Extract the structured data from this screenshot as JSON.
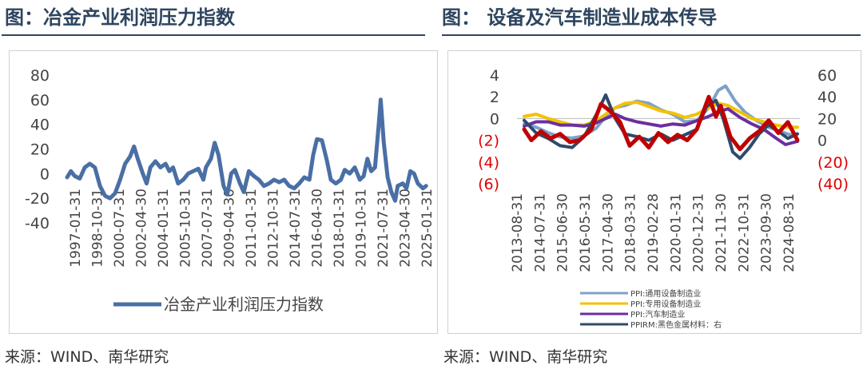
{
  "left": {
    "title": "图：冶金产业利润压力指数",
    "source": "来源：WIND、南华研究"
  },
  "right": {
    "title": "图：  设备及汽车制造业成本传导",
    "source": "来源：WIND、南华研究"
  },
  "chart_data": [
    {
      "type": "line",
      "ylim": [
        -40,
        80
      ],
      "yticks": [
        "80",
        "60",
        "40",
        "20",
        "0",
        "-20",
        "-40"
      ],
      "xtick_labels": [
        "1997-01-31",
        "1998-10-31",
        "2000-07-31",
        "2002-04-30",
        "2004-01-31",
        "2005-10-31",
        "2007-07-31",
        "2009-04-30",
        "2011-01-31",
        "2012-10-31",
        "2014-07-31",
        "2016-04-30",
        "2018-01-31",
        "2019-10-31",
        "2021-07-31",
        "2023-04-30",
        "2025-01-31"
      ],
      "x_range": [
        1997.0,
        2025.5
      ],
      "series": [
        {
          "name": "冶金产业利润压力指数",
          "color": "#4a6fa5",
          "points": [
            [
              1997.0,
              -3
            ],
            [
              1997.3,
              2
            ],
            [
              1997.6,
              -2
            ],
            [
              1998.0,
              -4
            ],
            [
              1998.4,
              5
            ],
            [
              1998.8,
              8
            ],
            [
              1999.2,
              5
            ],
            [
              1999.6,
              -10
            ],
            [
              2000.0,
              -18
            ],
            [
              2000.4,
              -20
            ],
            [
              2000.8,
              -16
            ],
            [
              2001.2,
              -5
            ],
            [
              2001.6,
              8
            ],
            [
              2002.0,
              14
            ],
            [
              2002.3,
              22
            ],
            [
              2002.6,
              12
            ],
            [
              2003.0,
              0
            ],
            [
              2003.3,
              -8
            ],
            [
              2003.6,
              5
            ],
            [
              2004.0,
              10
            ],
            [
              2004.4,
              5
            ],
            [
              2004.8,
              8
            ],
            [
              2005.1,
              2
            ],
            [
              2005.4,
              5
            ],
            [
              2005.8,
              -8
            ],
            [
              2006.2,
              -5
            ],
            [
              2006.6,
              0
            ],
            [
              2007.0,
              2
            ],
            [
              2007.4,
              4
            ],
            [
              2007.8,
              -5
            ],
            [
              2008.0,
              5
            ],
            [
              2008.4,
              12
            ],
            [
              2008.7,
              25
            ],
            [
              2009.0,
              15
            ],
            [
              2009.4,
              -10
            ],
            [
              2009.7,
              -17
            ],
            [
              2010.0,
              0
            ],
            [
              2010.3,
              3
            ],
            [
              2010.7,
              -8
            ],
            [
              2011.0,
              -15
            ],
            [
              2011.4,
              2
            ],
            [
              2011.8,
              -2
            ],
            [
              2012.2,
              -5
            ],
            [
              2012.6,
              -10
            ],
            [
              2013.0,
              -8
            ],
            [
              2013.4,
              -5
            ],
            [
              2013.8,
              -7
            ],
            [
              2014.2,
              -5
            ],
            [
              2014.6,
              -10
            ],
            [
              2015.0,
              -12
            ],
            [
              2015.4,
              -8
            ],
            [
              2015.8,
              -3
            ],
            [
              2016.2,
              -5
            ],
            [
              2016.5,
              15
            ],
            [
              2016.8,
              28
            ],
            [
              2017.2,
              27
            ],
            [
              2017.6,
              10
            ],
            [
              2017.9,
              -5
            ],
            [
              2018.3,
              -8
            ],
            [
              2018.7,
              -5
            ],
            [
              2019.0,
              3
            ],
            [
              2019.4,
              0
            ],
            [
              2019.8,
              5
            ],
            [
              2020.2,
              -5
            ],
            [
              2020.5,
              -2
            ],
            [
              2020.8,
              12
            ],
            [
              2021.1,
              2
            ],
            [
              2021.4,
              5
            ],
            [
              2021.7,
              40
            ],
            [
              2021.85,
              60
            ],
            [
              2022.1,
              25
            ],
            [
              2022.4,
              -3
            ],
            [
              2022.7,
              -15
            ],
            [
              2023.0,
              -22
            ],
            [
              2023.2,
              -10
            ],
            [
              2023.6,
              -8
            ],
            [
              2023.9,
              -12
            ],
            [
              2024.2,
              2
            ],
            [
              2024.5,
              0
            ],
            [
              2024.8,
              -8
            ],
            [
              2025.2,
              -12
            ],
            [
              2025.45,
              -10
            ]
          ]
        }
      ]
    },
    {
      "type": "line",
      "ylim_left": [
        -6,
        4
      ],
      "ylim_right": [
        -60,
        60
      ],
      "yticks_left": [
        "4",
        "2",
        "0",
        "(2)",
        "(4)",
        "(6)"
      ],
      "yticks_right": [
        "60",
        "40",
        "20",
        "0",
        "(20)",
        "(40)"
      ],
      "xtick_labels": [
        "2013-08-31",
        "2014-07-31",
        "2015-06-30",
        "2016-05-31",
        "2017-04-30",
        "2018-03-31",
        "2019-02-28",
        "2020-01-31",
        "2020-12-31",
        "2021-11-30",
        "2022-10-31",
        "2023-09-30",
        "2024-08-31"
      ],
      "x_range": [
        2013.5,
        2025.3
      ],
      "series": [
        {
          "name": "PPI:通用设备制造业",
          "axis": "left",
          "color": "#7ea1c8",
          "points": [
            [
              2013.8,
              -0.5
            ],
            [
              2014.3,
              -0.8
            ],
            [
              2014.8,
              -1.3
            ],
            [
              2015.3,
              -1.7
            ],
            [
              2015.8,
              -1.8
            ],
            [
              2016.3,
              -1.6
            ],
            [
              2016.8,
              -0.9
            ],
            [
              2017.2,
              0.2
            ],
            [
              2017.6,
              1.0
            ],
            [
              2018.0,
              1.2
            ],
            [
              2018.5,
              1.6
            ],
            [
              2019.0,
              1.4
            ],
            [
              2019.5,
              0.8
            ],
            [
              2020.0,
              0.4
            ],
            [
              2020.5,
              -0.3
            ],
            [
              2021.0,
              -0.2
            ],
            [
              2021.5,
              1.0
            ],
            [
              2021.9,
              2.6
            ],
            [
              2022.2,
              3.0
            ],
            [
              2022.6,
              1.6
            ],
            [
              2023.0,
              0.6
            ],
            [
              2023.5,
              -0.2
            ],
            [
              2024.0,
              -0.8
            ],
            [
              2024.5,
              -1.2
            ],
            [
              2024.9,
              -1.5
            ],
            [
              2025.2,
              -1.4
            ]
          ]
        },
        {
          "name": "PPI:专用设备制造业",
          "axis": "left",
          "color": "#f2c200",
          "points": [
            [
              2013.8,
              0.2
            ],
            [
              2014.3,
              0.4
            ],
            [
              2014.8,
              0.0
            ],
            [
              2015.3,
              -0.3
            ],
            [
              2015.8,
              -0.6
            ],
            [
              2016.3,
              -0.6
            ],
            [
              2016.8,
              -0.2
            ],
            [
              2017.2,
              0.4
            ],
            [
              2017.6,
              1.0
            ],
            [
              2018.0,
              1.4
            ],
            [
              2018.5,
              1.5
            ],
            [
              2019.0,
              1.1
            ],
            [
              2019.5,
              0.7
            ],
            [
              2020.0,
              0.5
            ],
            [
              2020.5,
              0.1
            ],
            [
              2021.0,
              0.4
            ],
            [
              2021.5,
              1.0
            ],
            [
              2021.9,
              1.4
            ],
            [
              2022.3,
              1.2
            ],
            [
              2022.8,
              0.6
            ],
            [
              2023.3,
              0.0
            ],
            [
              2023.8,
              -0.3
            ],
            [
              2024.3,
              -0.6
            ],
            [
              2024.8,
              -0.8
            ],
            [
              2025.2,
              -0.8
            ]
          ]
        },
        {
          "name": "PPI:汽车制造业",
          "axis": "left",
          "color": "#6a2fa0",
          "points": [
            [
              2013.8,
              -0.7
            ],
            [
              2014.3,
              -0.3
            ],
            [
              2014.8,
              -0.3
            ],
            [
              2015.3,
              -0.6
            ],
            [
              2015.8,
              -0.6
            ],
            [
              2016.3,
              -0.7
            ],
            [
              2016.8,
              -0.4
            ],
            [
              2017.2,
              0.0
            ],
            [
              2017.6,
              0.4
            ],
            [
              2018.0,
              0.0
            ],
            [
              2018.5,
              -0.3
            ],
            [
              2019.0,
              -0.5
            ],
            [
              2019.5,
              -0.7
            ],
            [
              2020.0,
              -0.5
            ],
            [
              2020.5,
              -0.6
            ],
            [
              2021.0,
              -0.2
            ],
            [
              2021.5,
              0.2
            ],
            [
              2021.9,
              0.6
            ],
            [
              2022.3,
              0.9
            ],
            [
              2022.8,
              0.1
            ],
            [
              2023.3,
              -0.5
            ],
            [
              2023.8,
              -1.0
            ],
            [
              2024.3,
              -1.8
            ],
            [
              2024.7,
              -2.4
            ],
            [
              2025.2,
              -2.1
            ]
          ]
        },
        {
          "name": "PPIRM:黑色金属材料：右",
          "axis": "right",
          "color": "#2f4a6a",
          "points": [
            [
              2013.8,
              10
            ],
            [
              2014.3,
              -4
            ],
            [
              2014.8,
              -10
            ],
            [
              2015.3,
              -18
            ],
            [
              2015.8,
              -20
            ],
            [
              2016.3,
              -8
            ],
            [
              2016.8,
              16
            ],
            [
              2017.2,
              38
            ],
            [
              2017.6,
              12
            ],
            [
              2018.0,
              -5
            ],
            [
              2018.5,
              -8
            ],
            [
              2019.0,
              -12
            ],
            [
              2019.5,
              -5
            ],
            [
              2020.0,
              -12
            ],
            [
              2020.5,
              -6
            ],
            [
              2021.0,
              0
            ],
            [
              2021.4,
              25
            ],
            [
              2021.8,
              32
            ],
            [
              2022.1,
              12
            ],
            [
              2022.5,
              -25
            ],
            [
              2022.8,
              -32
            ],
            [
              2023.2,
              -20
            ],
            [
              2023.6,
              -5
            ],
            [
              2024.0,
              5
            ],
            [
              2024.4,
              -2
            ],
            [
              2024.8,
              -10
            ],
            [
              2025.2,
              -5
            ]
          ]
        },
        {
          "name": "PPIRM:黑色金属材料（红）",
          "axis": "right",
          "color": "#c00000",
          "points": [
            [
              2013.8,
              0
            ],
            [
              2014.1,
              -12
            ],
            [
              2014.5,
              -2
            ],
            [
              2014.9,
              -10
            ],
            [
              2015.3,
              -5
            ],
            [
              2015.7,
              -14
            ],
            [
              2016.1,
              -12
            ],
            [
              2016.6,
              0
            ],
            [
              2017.0,
              28
            ],
            [
              2017.4,
              20
            ],
            [
              2017.8,
              8
            ],
            [
              2018.2,
              -18
            ],
            [
              2018.6,
              -8
            ],
            [
              2019.0,
              -20
            ],
            [
              2019.4,
              -4
            ],
            [
              2019.8,
              -14
            ],
            [
              2020.2,
              -6
            ],
            [
              2020.6,
              -12
            ],
            [
              2021.0,
              0
            ],
            [
              2021.5,
              36
            ],
            [
              2021.8,
              14
            ],
            [
              2022.0,
              26
            ],
            [
              2022.4,
              -8
            ],
            [
              2022.8,
              -22
            ],
            [
              2023.2,
              -10
            ],
            [
              2023.6,
              -2
            ],
            [
              2024.0,
              10
            ],
            [
              2024.4,
              -4
            ],
            [
              2024.8,
              8
            ],
            [
              2025.2,
              -12
            ]
          ]
        }
      ]
    }
  ]
}
